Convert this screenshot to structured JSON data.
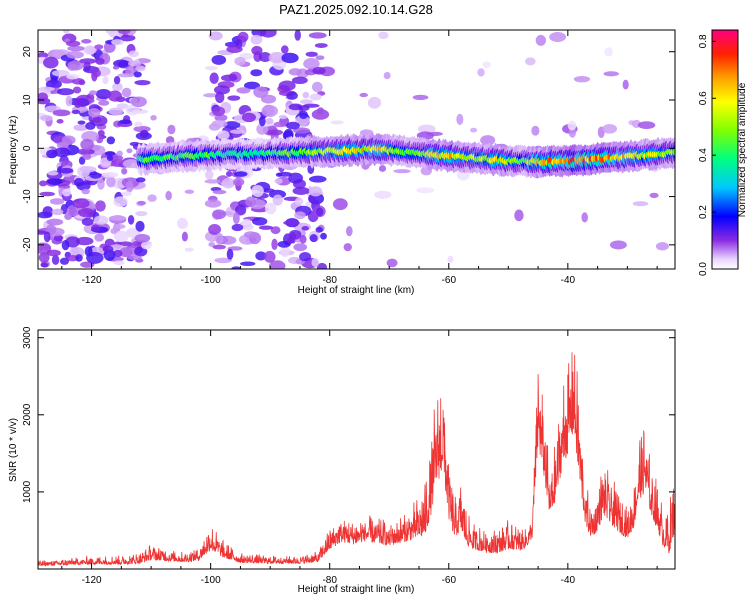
{
  "chart_data": [
    {
      "type": "heatmap",
      "title": "PAZ1.2025.092.10.14.G28",
      "xlabel": "Height of straight line (km)",
      "ylabel": "Frequency (Hz)",
      "xlim": [
        -129,
        -22
      ],
      "ylim": [
        -25,
        24.5
      ],
      "xticks": [
        "-120",
        "-100",
        "-80",
        "-60",
        "-40"
      ],
      "xtick_values": [
        -120,
        -100,
        -80,
        -60,
        -40
      ],
      "yticks": [
        "20",
        "10",
        "0",
        "-10",
        "-20"
      ],
      "ytick_values": [
        20,
        10,
        0,
        -10,
        -20
      ],
      "colorbar": {
        "label": "Normalized spectral amplitude",
        "range": [
          0,
          0.84
        ],
        "ticks": [
          "0.0",
          "0.2",
          "0.4",
          "0.6",
          "0.8"
        ],
        "tick_values": [
          0,
          0.2,
          0.4,
          0.6,
          0.8
        ]
      },
      "ridge": {
        "x": [
          -112,
          -108,
          -104,
          -100,
          -96,
          -92,
          -88,
          -84,
          -80,
          -76,
          -72,
          -68,
          -64,
          -60,
          -56,
          -52,
          -48,
          -44,
          -40,
          -36,
          -32,
          -28,
          -24,
          -22
        ],
        "frequency": [
          -2.3,
          -2.0,
          -1.6,
          -1.4,
          -1.2,
          -1.1,
          -1.0,
          -0.8,
          -0.6,
          -0.4,
          -0.2,
          -0.6,
          -1.2,
          -1.6,
          -2.0,
          -2.4,
          -2.7,
          -2.8,
          -2.6,
          -2.3,
          -1.9,
          -1.5,
          -1.0,
          -0.8
        ],
        "amplitude": [
          0.42,
          0.5,
          0.44,
          0.47,
          0.38,
          0.4,
          0.45,
          0.52,
          0.62,
          0.66,
          0.66,
          0.5,
          0.58,
          0.68,
          0.56,
          0.62,
          0.55,
          0.66,
          0.84,
          0.76,
          0.7,
          0.6,
          0.56,
          0.52
        ]
      }
    },
    {
      "type": "line",
      "xlabel": "Height of straight line (km)",
      "ylabel": "SNR (10 * v/v)",
      "xlim": [
        -129,
        -22
      ],
      "ylim": [
        0,
        3100
      ],
      "xticks": [
        "-120",
        "-100",
        "-80",
        "-60",
        "-40"
      ],
      "xtick_values": [
        -120,
        -100,
        -80,
        -60,
        -40
      ],
      "yticks": [
        "1000",
        "2000",
        "3000"
      ],
      "ytick_values": [
        1000,
        2000,
        3000
      ],
      "color": "#ee3333",
      "envelope": {
        "x": [
          -129,
          -125,
          -120,
          -115,
          -112,
          -110,
          -107,
          -104,
          -102,
          -100,
          -98,
          -95,
          -90,
          -85,
          -82,
          -80,
          -78,
          -76,
          -74,
          -72,
          -70,
          -68,
          -66,
          -64,
          -63,
          -62,
          -61,
          -60,
          -59,
          -58,
          -57,
          -56,
          -54,
          -52,
          -50,
          -48,
          -47,
          -46,
          -45,
          -44,
          -43,
          -42,
          -41,
          -40,
          -39,
          -38,
          -37,
          -36,
          -35,
          -34,
          -33,
          -32,
          -31,
          -30,
          -29,
          -28,
          -27,
          -26,
          -25,
          -24,
          -23,
          -22
        ],
        "peak": [
          110,
          130,
          170,
          180,
          220,
          330,
          260,
          220,
          300,
          600,
          380,
          210,
          180,
          180,
          230,
          540,
          700,
          640,
          720,
          680,
          620,
          700,
          860,
          1150,
          1750,
          2500,
          2650,
          1450,
          950,
          1150,
          780,
          600,
          560,
          520,
          650,
          560,
          560,
          650,
          2850,
          2200,
          1250,
          1750,
          2450,
          2750,
          3100,
          2200,
          1150,
          850,
          1050,
          1500,
          1250,
          1150,
          950,
          850,
          1050,
          1800,
          1950,
          1400,
          1150,
          820,
          820,
          1400
        ],
        "base": [
          40,
          50,
          60,
          60,
          70,
          120,
          100,
          90,
          110,
          250,
          150,
          80,
          70,
          70,
          90,
          250,
          350,
          320,
          360,
          330,
          300,
          340,
          380,
          420,
          700,
          1100,
          1300,
          650,
          400,
          500,
          320,
          260,
          220,
          200,
          260,
          240,
          280,
          400,
          1600,
          1200,
          650,
          900,
          1300,
          1500,
          1800,
          1100,
          550,
          400,
          500,
          700,
          600,
          520,
          450,
          400,
          520,
          900,
          1000,
          700,
          520,
          300,
          200,
          500
        ]
      }
    }
  ]
}
